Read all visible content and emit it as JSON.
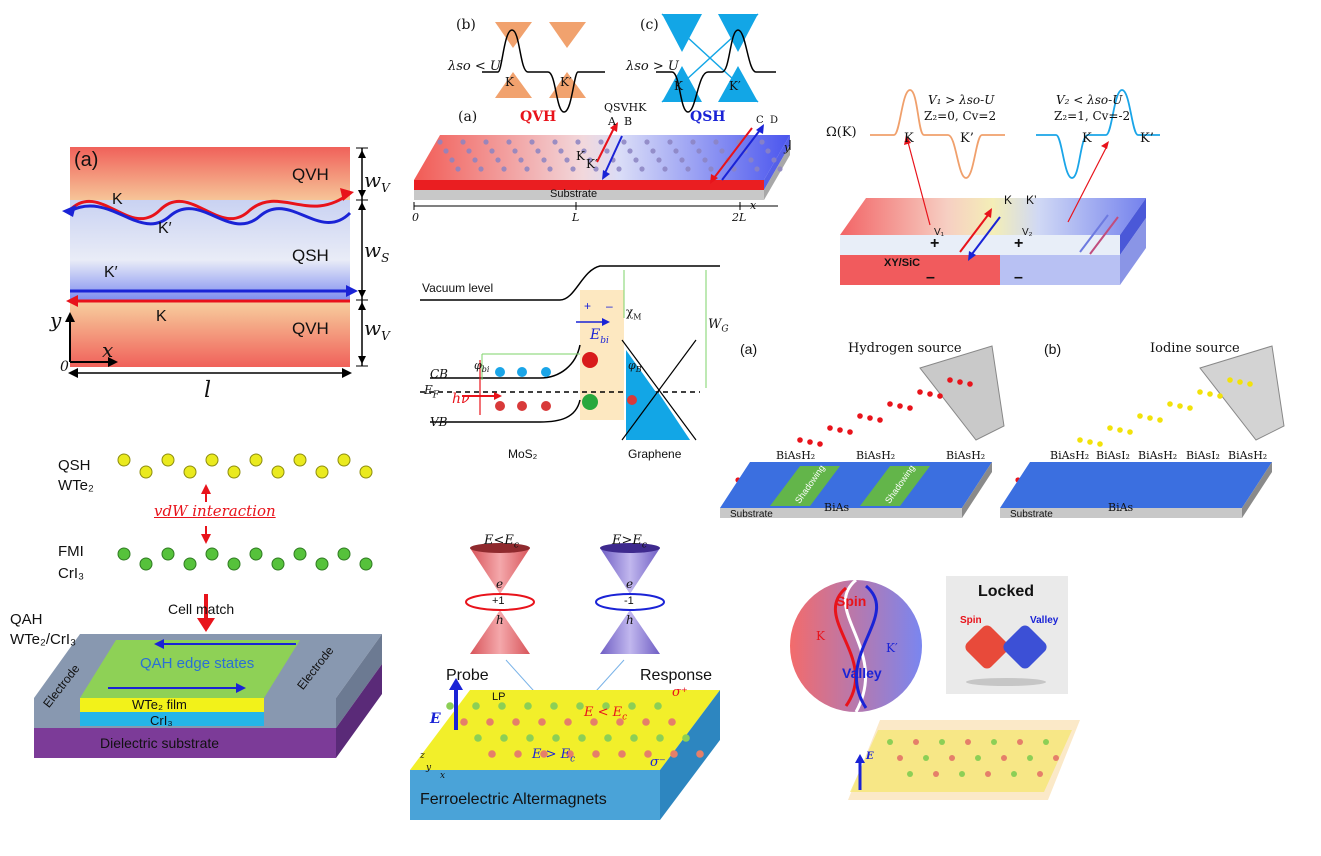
{
  "colors": {
    "red": "#e8131b",
    "blue": "#1a23d6",
    "cyan": "#1aa5e8",
    "orange": "#f0a06c",
    "yellow": "#f2e20a",
    "green": "#4cc43a",
    "substrate_gray": "#8d96a4",
    "purple": "#7c3b98"
  },
  "panel_edge": {
    "label": "(a)",
    "top_region": "QVH",
    "mid_region": "QSH",
    "bottom_region": "QVH",
    "k_top": "K",
    "kprime_upper": "K′",
    "kprime_lower": "K′",
    "k_bottom": "K",
    "w_top": "w",
    "w_top_sub": "V",
    "w_mid": "w",
    "w_mid_sub": "S",
    "w_bot": "w",
    "w_bot_sub": "V",
    "axis_y": "y",
    "axis_x": "x",
    "origin": "0",
    "length": "l"
  },
  "panel_bands": {
    "b_label": "(b)",
    "c_label": "(c)",
    "b_cond": "λso < U",
    "c_cond": "λso > U",
    "k": "K",
    "kprime": "K′",
    "a_label": "(a)",
    "qvh": "QVH",
    "qsh": "QSH",
    "qsvhk": "QSVHK",
    "A": "A",
    "B": "B",
    "C": "C",
    "D": "D",
    "strip_k": "K",
    "strip_kprime": "K′",
    "substrate": "Substrate",
    "tick0": "0",
    "tickL": "L",
    "tick2L": "2L",
    "axis_x": "x",
    "axis_y": "y"
  },
  "panel_berry": {
    "omega": "Ω(K)",
    "v1_cond": "V₁ > λso-U",
    "v1_z": "Z₂=0, Cv=2",
    "v2_cond": "V₂ < λso-U",
    "v2_z": "Z₂=1, Cv=-2",
    "k_left": "K",
    "kprime_left": "K’",
    "k_right": "K",
    "kprime_right": "K’",
    "k_top": "K",
    "kprime_top": "K’",
    "v1": "V₁",
    "v2": "V₂",
    "plus1": "+",
    "plus2": "+",
    "minus1": "–",
    "minus2": "–",
    "slab": "XY/SiC"
  },
  "panel_band_align": {
    "vacuum": "Vacuum level",
    "cb": "CB",
    "ef": "E",
    "ef_sub": "F",
    "vb": "VB",
    "hv": "hν",
    "phi_bi": "φ",
    "phi_bi_sub": "bi",
    "phi_b": "φ",
    "phi_b_sub": "B",
    "chi": "χ",
    "chi_sub": "M",
    "wg": "W",
    "wg_sub": "G",
    "ebi": "E",
    "ebi_sub": "bi",
    "mos2": "MoS₂",
    "graphene": "Graphene",
    "plus": "+",
    "minus": "–"
  },
  "panel_hydro": {
    "a_label": "(a)",
    "b_label": "(b)",
    "h_source": "Hydrogen source",
    "i_source": "Iodine source",
    "left_top_labels": [
      "BiAsH₂",
      "BiAsH₂",
      "BiAsH₂"
    ],
    "right_top_labels": [
      "BiAsH₂",
      "BiAsI₂",
      "BiAsH₂",
      "BiAsI₂",
      "BiAsH₂"
    ],
    "shadowing": "Shadowing",
    "bias": "BiAs",
    "substrate": "Substrate"
  },
  "panel_qah": {
    "qsh": "QSH",
    "wte2": "WTe₂",
    "vdw": "vdW interaction",
    "fmi": "FMI",
    "cri3": "CrI₃",
    "cell_match": "Cell match",
    "qah": "QAH",
    "qah_mat": "WTe₂/CrI₃",
    "edge_states": "QAH edge states",
    "electrode_left": "Electrode",
    "electrode_right": "Electrode",
    "film": "WTe₂ film",
    "cri3_layer": "CrI₃",
    "dielectric": "Dielectric substrate"
  },
  "panel_alter": {
    "cone_left_cond": "E<E",
    "cone_left_sub": "c",
    "cone_right_cond": "E>E",
    "cone_right_sub": "c",
    "e": "e",
    "h": "h",
    "plus1": "+1",
    "minus1": "-1",
    "probe": "Probe",
    "response": "Response",
    "lp": "LP",
    "e_lt": "E < E",
    "e_lt_sub": "c",
    "e_gt": "E > E",
    "e_gt_sub": "c",
    "sigma_plus": "σ⁺",
    "sigma_minus": "σ⁻",
    "e_field": "E",
    "axis_z": "z",
    "axis_y": "y",
    "axis_x": "x",
    "slab": "Ferroelectric Altermagnets"
  },
  "panel_lock": {
    "spin": "Spin",
    "valley": "Valley",
    "k": "K",
    "kprime": "K′",
    "locked": "Locked",
    "spin_small": "Spin",
    "valley_small": "Valley",
    "e_field": "E"
  }
}
